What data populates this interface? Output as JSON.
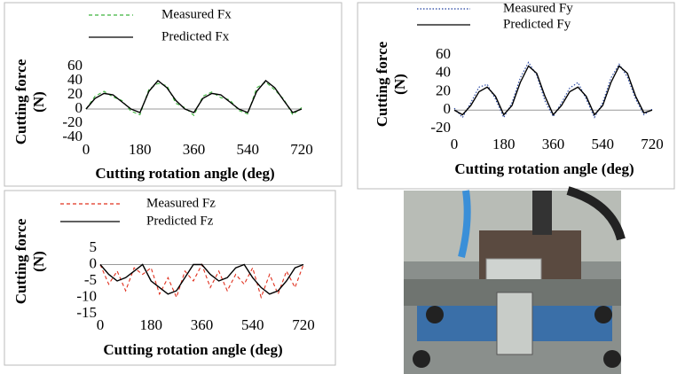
{
  "chart_data": [
    {
      "type": "line",
      "ylabel": "Cutting force",
      "ylabel_unit": "(N)",
      "xlabel": "Cutting rotation angle (deg)",
      "x": [
        0,
        30,
        60,
        90,
        120,
        150,
        180,
        210,
        240,
        270,
        300,
        330,
        360,
        390,
        420,
        450,
        480,
        510,
        540,
        570,
        600,
        630,
        660,
        690,
        720
      ],
      "series": [
        {
          "name": "Measured Fx",
          "color": "#3cb43c",
          "style": "dashed",
          "values": [
            0,
            18,
            25,
            17,
            12,
            -3,
            -8,
            28,
            36,
            33,
            8,
            2,
            -9,
            18,
            24,
            16,
            13,
            -2,
            -7,
            30,
            38,
            27,
            14,
            -8,
            2
          ]
        },
        {
          "name": "Predicted Fx",
          "color": "#000000",
          "style": "solid",
          "values": [
            0,
            15,
            22,
            20,
            10,
            0,
            -5,
            25,
            40,
            30,
            12,
            0,
            -5,
            15,
            22,
            20,
            10,
            0,
            -5,
            25,
            40,
            30,
            12,
            -5,
            0
          ]
        }
      ],
      "xlim": [
        0,
        720
      ],
      "xticks": [
        0,
        180,
        360,
        540,
        720
      ],
      "ylim": [
        -40,
        60
      ],
      "yticks": [
        -40,
        -20,
        0,
        20,
        40,
        60
      ]
    },
    {
      "type": "line",
      "ylabel": "Cutting force",
      "ylabel_unit": "(N)",
      "xlabel": "Cutting rotation angle (deg)",
      "x": [
        0,
        30,
        60,
        90,
        120,
        150,
        180,
        210,
        240,
        270,
        300,
        330,
        360,
        390,
        420,
        450,
        480,
        510,
        540,
        570,
        600,
        630,
        660,
        690,
        720
      ],
      "series": [
        {
          "name": "Measured Fy",
          "color": "#1f3f9f",
          "style": "dotted",
          "values": [
            2,
            -8,
            8,
            25,
            28,
            12,
            -8,
            8,
            35,
            52,
            38,
            10,
            -7,
            8,
            24,
            30,
            12,
            -8,
            8,
            35,
            50,
            36,
            12,
            -5,
            1
          ]
        },
        {
          "name": "Predicted Fy",
          "color": "#000000",
          "style": "solid",
          "values": [
            0,
            -5,
            5,
            20,
            25,
            15,
            -5,
            5,
            30,
            48,
            40,
            15,
            -5,
            5,
            20,
            25,
            15,
            -5,
            5,
            30,
            48,
            40,
            15,
            -3,
            0
          ]
        }
      ],
      "xlim": [
        0,
        720
      ],
      "xticks": [
        0,
        180,
        360,
        540,
        720
      ],
      "ylim": [
        -20,
        60
      ],
      "yticks": [
        -20,
        0,
        20,
        40,
        60
      ]
    },
    {
      "type": "line",
      "ylabel": "Cutting force",
      "ylabel_unit": "(N)",
      "xlabel": "Cutting rotation angle (deg)",
      "x": [
        0,
        30,
        60,
        90,
        120,
        150,
        180,
        210,
        240,
        270,
        300,
        330,
        360,
        390,
        420,
        450,
        480,
        510,
        540,
        570,
        600,
        630,
        660,
        690,
        720
      ],
      "series": [
        {
          "name": "Measured Fz",
          "color": "#e0301e",
          "style": "dashed",
          "values": [
            0,
            -6,
            -2,
            -8,
            -1,
            -3,
            -1,
            -9,
            -4,
            -10,
            -2,
            -5,
            0,
            -7,
            -2,
            -8,
            -3,
            -6,
            -1,
            -10,
            -3,
            -9,
            -2,
            -7,
            0
          ]
        },
        {
          "name": "Predicted Fz",
          "color": "#000000",
          "style": "solid",
          "values": [
            0,
            -3,
            -5,
            -4,
            -2,
            0,
            -5,
            -7,
            -9,
            -8,
            -4,
            0,
            0,
            -3,
            -5,
            -4,
            -1,
            0,
            -4,
            -7,
            -9,
            -8,
            -5,
            -1,
            0
          ]
        }
      ],
      "xlim": [
        0,
        720
      ],
      "xticks": [
        0,
        180,
        360,
        540,
        720
      ],
      "ylim": [
        -15,
        5
      ],
      "yticks": [
        -15,
        -10,
        -5,
        0,
        5
      ]
    }
  ]
}
